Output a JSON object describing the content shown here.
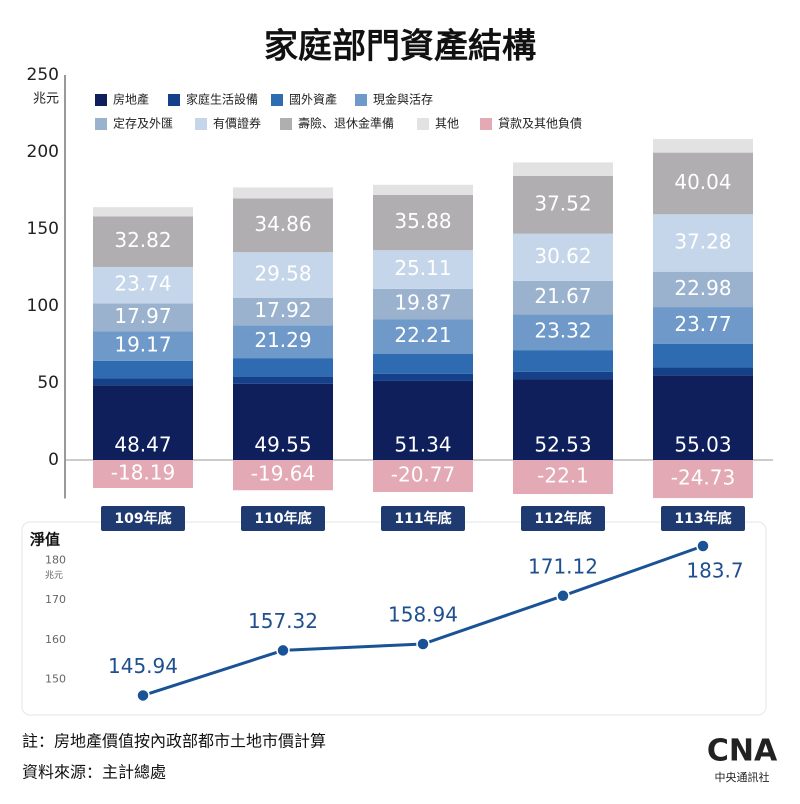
{
  "title": "家庭部門資產結構",
  "notes": [
    "註：房地產價值按內政部都市土地市價計算",
    "資料來源：主計總處"
  ],
  "logo": {
    "mark": "CNA",
    "name": "中央通訊社"
  },
  "chart_data": [
    {
      "type": "stacked-bar",
      "y_unit": "兆元",
      "categories": [
        "109年底",
        "110年底",
        "111年底",
        "112年底",
        "113年底"
      ],
      "ylim": [
        -25,
        250
      ],
      "yticks": [
        0,
        50,
        100,
        150,
        200,
        250
      ],
      "series": [
        {
          "name": "房地產",
          "color": "#0e1f5b",
          "show_values": true,
          "values": [
            48.47,
            49.55,
            51.34,
            52.53,
            55.03
          ]
        },
        {
          "name": "家庭生活設備",
          "color": "#15418a",
          "values": [
            4.5,
            4.6,
            4.7,
            4.8,
            5
          ]
        },
        {
          "name": "國外資產",
          "color": "#2e6bb0",
          "values": [
            11.5,
            12,
            13,
            14,
            15.5
          ]
        },
        {
          "name": "現金與活存",
          "color": "#6e99c9",
          "show_values": true,
          "values": [
            19.17,
            21.29,
            22.21,
            23.32,
            23.77
          ]
        },
        {
          "name": "定存及外匯",
          "color": "#9bb2cf",
          "show_values": true,
          "values": [
            17.97,
            17.92,
            19.87,
            21.67,
            22.98
          ]
        },
        {
          "name": "有價證券",
          "color": "#c5d6ea",
          "show_values": true,
          "values": [
            23.74,
            29.58,
            25.11,
            30.62,
            37.28
          ]
        },
        {
          "name": "壽險、退休金準備",
          "color": "#b0aeb0",
          "show_values": true,
          "values": [
            32.82,
            34.86,
            35.88,
            37.52,
            40.04
          ]
        },
        {
          "name": "其他",
          "color": "#e2e2e2",
          "values": [
            6,
            7.2,
            6.6,
            8.8,
            8.8
          ]
        },
        {
          "name": "貸款及其他負債",
          "color": "#e3a9b5",
          "show_values": true,
          "values": [
            -18.19,
            -19.64,
            -20.77,
            -22.1,
            -24.73
          ]
        }
      ]
    },
    {
      "type": "line",
      "title": "淨值",
      "y_unit": "兆元",
      "categories": [
        "109年底",
        "110年底",
        "111年底",
        "112年底",
        "113年底"
      ],
      "ylim": [
        141,
        189
      ],
      "yticks": [
        150,
        160,
        170,
        180
      ],
      "series": [
        {
          "name": "淨值",
          "color": "#1a5296",
          "values": [
            145.94,
            157.32,
            158.94,
            171.12,
            183.7
          ]
        }
      ]
    }
  ]
}
